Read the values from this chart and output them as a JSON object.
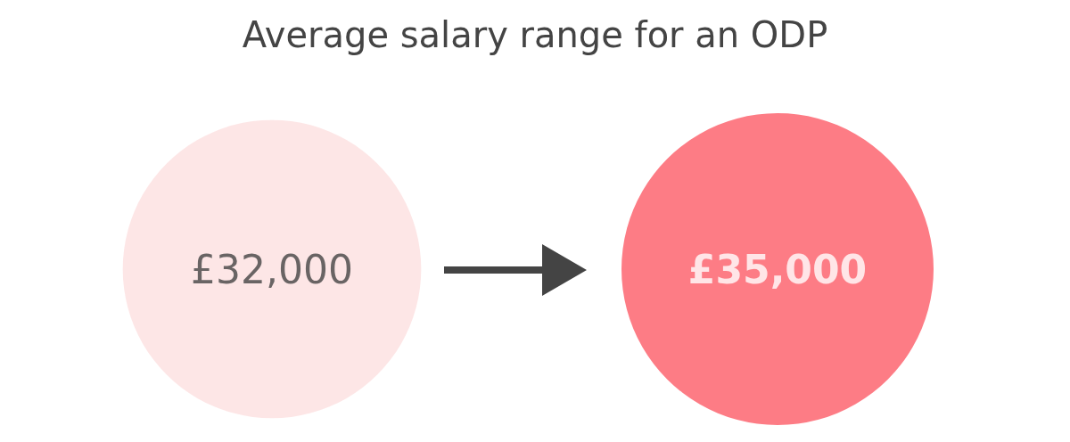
{
  "chart_data": {
    "type": "other",
    "title": "Average salary range for an ODP",
    "categories": [
      null,
      null
    ],
    "values": [
      32000,
      35000
    ],
    "value_labels": [
      "£32,000",
      "£35,000"
    ],
    "colors": [
      "#fde0e0",
      "#fc5b66"
    ]
  }
}
